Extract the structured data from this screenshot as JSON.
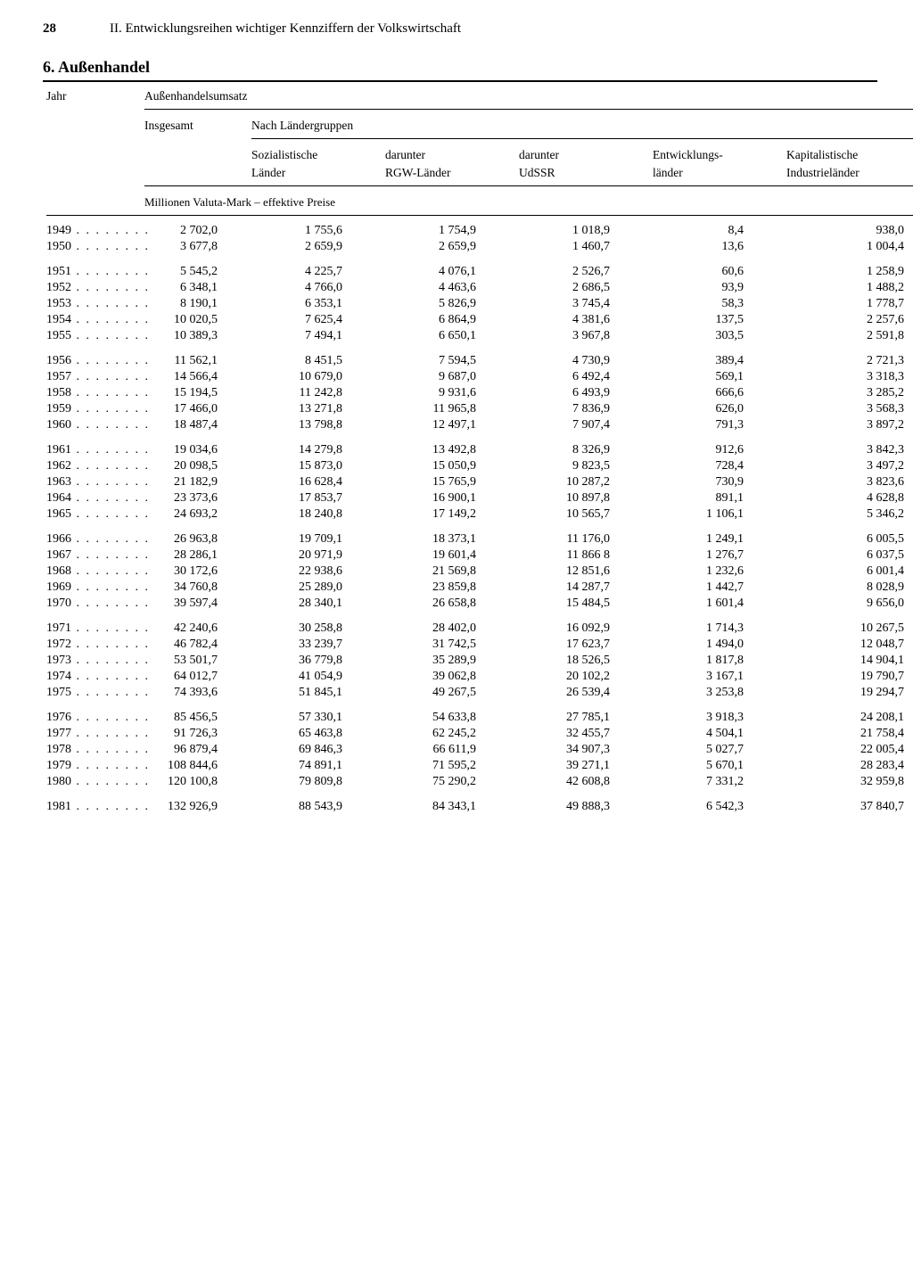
{
  "page_number": "28",
  "running_title": "II. Entwicklungsreihen wichtiger Kennziffern der Volkswirtschaft",
  "section_title": "6. Außenhandel",
  "col_year": "Jahr",
  "spanner_umsatz": "Außenhandelsumsatz",
  "col_total": "Insgesamt",
  "spanner_groups": "Nach Ländergruppen",
  "col_soz1": "Sozialistische",
  "col_soz2": "Länder",
  "col_rgw1": "darunter",
  "col_rgw2": "RGW-Länder",
  "col_ussr1": "darunter",
  "col_ussr2": "UdSSR",
  "col_dev1": "Entwicklungs-",
  "col_dev2": "länder",
  "col_cap1": "Kapitalistische",
  "col_cap2": "Industrieländer",
  "unit_line": "Millionen Valuta-Mark – effektive Preise",
  "year_dots": " . . . . . . . .",
  "rows": [
    {
      "y": "1949",
      "v": [
        "2 702,0",
        "1 755,6",
        "1 754,9",
        "1 018,9",
        "8,4",
        "938,0"
      ]
    },
    {
      "y": "1950",
      "v": [
        "3 677,8",
        "2 659,9",
        "2 659,9",
        "1 460,7",
        "13,6",
        "1 004,4"
      ]
    },
    {
      "y": "1951",
      "v": [
        "5 545,2",
        "4 225,7",
        "4 076,1",
        "2 526,7",
        "60,6",
        "1 258,9"
      ]
    },
    {
      "y": "1952",
      "v": [
        "6 348,1",
        "4 766,0",
        "4 463,6",
        "2 686,5",
        "93,9",
        "1 488,2"
      ]
    },
    {
      "y": "1953",
      "v": [
        "8 190,1",
        "6 353,1",
        "5 826,9",
        "3 745,4",
        "58,3",
        "1 778,7"
      ]
    },
    {
      "y": "1954",
      "v": [
        "10 020,5",
        "7 625,4",
        "6 864,9",
        "4 381,6",
        "137,5",
        "2 257,6"
      ]
    },
    {
      "y": "1955",
      "v": [
        "10 389,3",
        "7 494,1",
        "6 650,1",
        "3 967,8",
        "303,5",
        "2 591,8"
      ]
    },
    {
      "y": "1956",
      "v": [
        "11 562,1",
        "8 451,5",
        "7 594,5",
        "4 730,9",
        "389,4",
        "2 721,3"
      ]
    },
    {
      "y": "1957",
      "v": [
        "14 566,4",
        "10 679,0",
        "9 687,0",
        "6 492,4",
        "569,1",
        "3 318,3"
      ]
    },
    {
      "y": "1958",
      "v": [
        "15 194,5",
        "11 242,8",
        "9 931,6",
        "6 493,9",
        "666,6",
        "3 285,2"
      ]
    },
    {
      "y": "1959",
      "v": [
        "17 466,0",
        "13 271,8",
        "11 965,8",
        "7 836,9",
        "626,0",
        "3 568,3"
      ]
    },
    {
      "y": "1960",
      "v": [
        "18 487,4",
        "13 798,8",
        "12 497,1",
        "7 907,4",
        "791,3",
        "3 897,2"
      ]
    },
    {
      "y": "1961",
      "v": [
        "19 034,6",
        "14 279,8",
        "13 492,8",
        "8 326,9",
        "912,6",
        "3 842,3"
      ]
    },
    {
      "y": "1962",
      "v": [
        "20 098,5",
        "15 873,0",
        "15 050,9",
        "9 823,5",
        "728,4",
        "3 497,2"
      ]
    },
    {
      "y": "1963",
      "v": [
        "21 182,9",
        "16 628,4",
        "15 765,9",
        "10 287,2",
        "730,9",
        "3 823,6"
      ]
    },
    {
      "y": "1964",
      "v": [
        "23 373,6",
        "17 853,7",
        "16 900,1",
        "10 897,8",
        "891,1",
        "4 628,8"
      ]
    },
    {
      "y": "1965",
      "v": [
        "24 693,2",
        "18 240,8",
        "17 149,2",
        "10 565,7",
        "1 106,1",
        "5 346,2"
      ]
    },
    {
      "y": "1966",
      "v": [
        "26 963,8",
        "19 709,1",
        "18 373,1",
        "11 176,0",
        "1 249,1",
        "6 005,5"
      ]
    },
    {
      "y": "1967",
      "v": [
        "28 286,1",
        "20 971,9",
        "19 601,4",
        "11 866 8",
        "1 276,7",
        "6 037,5"
      ]
    },
    {
      "y": "1968",
      "v": [
        "30 172,6",
        "22 938,6",
        "21 569,8",
        "12 851,6",
        "1 232,6",
        "6 001,4"
      ]
    },
    {
      "y": "1969",
      "v": [
        "34 760,8",
        "25 289,0",
        "23 859,8",
        "14 287,7",
        "1 442,7",
        "8 028,9"
      ]
    },
    {
      "y": "1970",
      "v": [
        "39 597,4",
        "28 340,1",
        "26 658,8",
        "15 484,5",
        "1 601,4",
        "9 656,0"
      ]
    },
    {
      "y": "1971",
      "v": [
        "42 240,6",
        "30 258,8",
        "28 402,0",
        "16 092,9",
        "1 714,3",
        "10 267,5"
      ]
    },
    {
      "y": "1972",
      "v": [
        "46 782,4",
        "33 239,7",
        "31 742,5",
        "17 623,7",
        "1 494,0",
        "12 048,7"
      ]
    },
    {
      "y": "1973",
      "v": [
        "53 501,7",
        "36 779,8",
        "35 289,9",
        "18 526,5",
        "1 817,8",
        "14 904,1"
      ]
    },
    {
      "y": "1974",
      "v": [
        "64 012,7",
        "41 054,9",
        "39 062,8",
        "20 102,2",
        "3 167,1",
        "19 790,7"
      ]
    },
    {
      "y": "1975",
      "v": [
        "74 393,6",
        "51 845,1",
        "49 267,5",
        "26 539,4",
        "3 253,8",
        "19 294,7"
      ]
    },
    {
      "y": "1976",
      "v": [
        "85 456,5",
        "57 330,1",
        "54 633,8",
        "27 785,1",
        "3 918,3",
        "24 208,1"
      ]
    },
    {
      "y": "1977",
      "v": [
        "91 726,3",
        "65 463,8",
        "62 245,2",
        "32 455,7",
        "4 504,1",
        "21 758,4"
      ]
    },
    {
      "y": "1978",
      "v": [
        "96 879,4",
        "69 846,3",
        "66 611,9",
        "34 907,3",
        "5 027,7",
        "22 005,4"
      ]
    },
    {
      "y": "1979",
      "v": [
        "108 844,6",
        "74 891,1",
        "71 595,2",
        "39 271,1",
        "5 670,1",
        "28 283,4"
      ]
    },
    {
      "y": "1980",
      "v": [
        "120 100,8",
        "79 809,8",
        "75 290,2",
        "42 608,8",
        "7 331,2",
        "32 959,8"
      ]
    },
    {
      "y": "1981",
      "v": [
        "132 926,9",
        "88 543,9",
        "84 343,1",
        "49 888,3",
        "6 542,3",
        "37 840,7"
      ]
    }
  ],
  "group_breaks": [
    2,
    7,
    12,
    17,
    22,
    27,
    32
  ]
}
